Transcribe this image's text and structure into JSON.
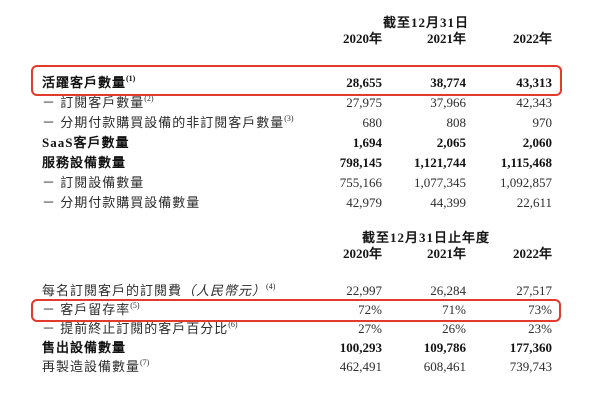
{
  "accent_red": "#e23a2c",
  "table1": {
    "period_header": "截至12月31日",
    "years": [
      "2020年",
      "2021年",
      "2022年"
    ],
    "rows": [
      {
        "label": "活躍客戶數量",
        "sup": "(1)",
        "values": [
          "28,655",
          "38,774",
          "43,313"
        ],
        "bold": true,
        "highlighted": true
      },
      {
        "label": "－ 訂閱客戶數量",
        "sup": "(2)",
        "values": [
          "27,975",
          "37,966",
          "42,343"
        ],
        "bold": false,
        "highlighted": false
      },
      {
        "label": "－ 分期付款購買設備的非訂閱客戶數量",
        "sup": "(3)",
        "values": [
          "680",
          "808",
          "970"
        ],
        "bold": false,
        "highlighted": false
      },
      {
        "label": "SaaS客戶數量",
        "sup": "",
        "values": [
          "1,694",
          "2,065",
          "2,060"
        ],
        "bold": true,
        "highlighted": false
      },
      {
        "label": "服務設備數量",
        "sup": "",
        "values": [
          "798,145",
          "1,121,744",
          "1,115,468"
        ],
        "bold": true,
        "highlighted": false
      },
      {
        "label": "－ 訂閱設備數量",
        "sup": "",
        "values": [
          "755,166",
          "1,077,345",
          "1,092,857"
        ],
        "bold": false,
        "highlighted": false
      },
      {
        "label": "－ 分期付款購買設備數量",
        "sup": "",
        "values": [
          "42,979",
          "44,399",
          "22,611"
        ],
        "bold": false,
        "highlighted": false
      }
    ]
  },
  "table2": {
    "period_header": "截至12月31日止年度",
    "years": [
      "2020年",
      "2021年",
      "2022年"
    ],
    "rows": [
      {
        "label": "每名訂閱客戶的訂閱費",
        "label_italic": "（人民幣元）",
        "sup": "(4)",
        "values": [
          "22,997",
          "26,284",
          "27,517"
        ],
        "bold": false,
        "highlighted": false
      },
      {
        "label": "－ 客戶留存率",
        "sup": "(5)",
        "values": [
          "72%",
          "71%",
          "73%"
        ],
        "bold": false,
        "highlighted": true
      },
      {
        "label": "－ 提前終止訂閱的客戶百分比",
        "sup": "(6)",
        "values": [
          "27%",
          "26%",
          "23%"
        ],
        "bold": false,
        "highlighted": false
      },
      {
        "label": "售出設備數量",
        "sup": "",
        "values": [
          "100,293",
          "109,786",
          "177,360"
        ],
        "bold": true,
        "highlighted": false
      },
      {
        "label": "再製造設備數量",
        "sup": "(7)",
        "values": [
          "462,491",
          "608,461",
          "739,743"
        ],
        "bold": false,
        "highlighted": false
      }
    ]
  }
}
